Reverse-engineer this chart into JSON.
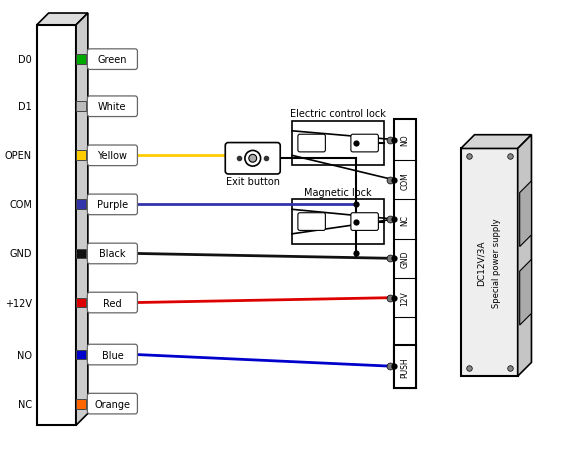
{
  "bg_color": "#ffffff",
  "line_color": "#000000",
  "pins": [
    {
      "label": "D0",
      "wire_color": "#00aa00",
      "wire_label": "Green"
    },
    {
      "label": "D1",
      "wire_color": "#bbbbbb",
      "wire_label": "White"
    },
    {
      "label": "OPEN",
      "wire_color": "#ffcc00",
      "wire_label": "Yellow"
    },
    {
      "label": "COM",
      "wire_color": "#3333aa",
      "wire_label": "Purple"
    },
    {
      "label": "GND",
      "wire_color": "#111111",
      "wire_label": "Black"
    },
    {
      "label": "+12V",
      "wire_color": "#dd0000",
      "wire_label": "Red"
    },
    {
      "label": "NO",
      "wire_color": "#0000cc",
      "wire_label": "Blue"
    },
    {
      "label": "NC",
      "wire_color": "#ff6600",
      "wire_label": "Orange"
    }
  ],
  "terminal_labels": [
    "NO",
    "COM",
    "NC",
    "GND",
    "12V",
    "PUSH"
  ],
  "electric_lock_label": "Electric control lock",
  "magnetic_lock_label": "Magnetic lock",
  "exit_button_label": "Exit button",
  "power_supply_label": "Special power supply",
  "power_voltage_label": "DC12V/3A"
}
